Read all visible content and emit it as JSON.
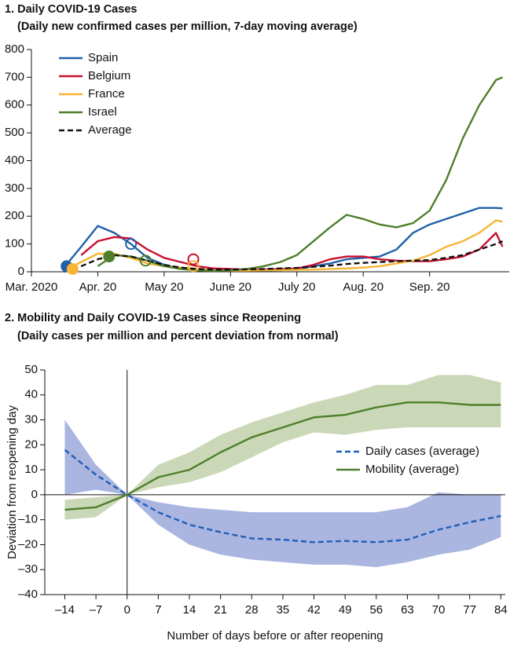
{
  "chart_data": [
    {
      "type": "line",
      "title": "1. Daily COVID-19 Cases",
      "subtitle": "(Daily new confirmed cases per million, 7-day moving average)",
      "x": [
        0.5,
        0.75,
        1,
        1.25,
        1.5,
        1.75,
        2,
        2.25,
        2.5,
        2.75,
        3,
        3.25,
        3.5,
        3.75,
        4,
        4.25,
        4.5,
        4.75,
        5,
        5.25,
        5.5,
        5.75,
        6,
        6.25,
        6.5,
        6.75,
        7,
        7.1
      ],
      "xlim": [
        0,
        7.2
      ],
      "xticks": [
        {
          "value": 0,
          "label": "Mar. 2020"
        },
        {
          "value": 1,
          "label": "Apr. 20"
        },
        {
          "value": 2,
          "label": "May 20"
        },
        {
          "value": 3,
          "label": "June 20"
        },
        {
          "value": 4,
          "label": "July 20"
        },
        {
          "value": 5,
          "label": "Aug. 20"
        },
        {
          "value": 6,
          "label": "Sep. 20"
        }
      ],
      "ylim": [
        0,
        800
      ],
      "yticks": [
        0,
        100,
        200,
        300,
        400,
        500,
        600,
        700,
        800
      ],
      "legend": "upper left",
      "series": [
        {
          "name": "Spain",
          "color": "#1f5fa8",
          "dashed": false,
          "values": [
            18,
            90,
            165,
            140,
            100,
            50,
            25,
            12,
            8,
            6,
            5,
            5,
            5,
            6,
            10,
            20,
            30,
            45,
            50,
            55,
            80,
            140,
            170,
            190,
            210,
            230,
            230,
            228
          ],
          "markers": [
            {
              "x": 0.53,
              "y": 20,
              "filled": true
            },
            {
              "x": 1.5,
              "y": 100,
              "filled": false
            }
          ]
        },
        {
          "name": "Belgium",
          "color": "#c8102e",
          "dashed": false,
          "values": [
            null,
            60,
            110,
            125,
            120,
            80,
            50,
            35,
            20,
            12,
            10,
            8,
            8,
            10,
            12,
            25,
            45,
            55,
            55,
            45,
            40,
            38,
            38,
            45,
            55,
            80,
            140,
            90
          ],
          "markers": [
            {
              "x": 2.44,
              "y": 45,
              "filled": false
            }
          ]
        },
        {
          "name": "France",
          "color": "#f6b534",
          "dashed": false,
          "values": [
            5,
            35,
            65,
            65,
            50,
            30,
            20,
            15,
            10,
            5,
            4,
            4,
            5,
            6,
            7,
            8,
            10,
            12,
            15,
            20,
            30,
            40,
            60,
            90,
            110,
            140,
            185,
            180
          ],
          "markers": [
            {
              "x": 0.62,
              "y": 10,
              "filled": true
            },
            {
              "x": 2.44,
              "y": 20,
              "filled": false
            }
          ]
        },
        {
          "name": "Israel",
          "color": "#4f7f2a",
          "dashed": false,
          "values": [
            null,
            null,
            20,
            60,
            55,
            40,
            20,
            10,
            5,
            3,
            5,
            10,
            20,
            35,
            60,
            110,
            160,
            205,
            190,
            170,
            160,
            175,
            220,
            330,
            480,
            600,
            690,
            700
          ],
          "markers": [
            {
              "x": 1.17,
              "y": 55,
              "filled": true
            },
            {
              "x": 1.72,
              "y": 40,
              "filled": false
            }
          ]
        },
        {
          "name": "Average",
          "color": "#111111",
          "dashed": true,
          "values": [
            0,
            20,
            45,
            60,
            55,
            40,
            25,
            15,
            10,
            8,
            8,
            9,
            10,
            12,
            14,
            18,
            22,
            28,
            32,
            35,
            38,
            40,
            42,
            50,
            60,
            80,
            100,
            110
          ]
        }
      ]
    },
    {
      "type": "line",
      "title": "2. Mobility and Daily COVID-19 Cases since Reopening",
      "subtitle": "(Daily cases per million and percent deviation from normal)",
      "x_label": "Number of days before or after reopening",
      "y_label": "Deviation from reopening day",
      "x": [
        -14,
        -7,
        0,
        7,
        14,
        21,
        28,
        35,
        42,
        49,
        56,
        63,
        70,
        77,
        84
      ],
      "xlim": [
        -18.5,
        85
      ],
      "xticks": [
        {
          "value": -14,
          "label": "–14"
        },
        {
          "value": -7,
          "label": "–7"
        },
        0,
        7,
        14,
        21,
        28,
        35,
        42,
        49,
        56,
        63,
        70,
        77,
        84
      ],
      "ylim": [
        -40,
        50
      ],
      "yticks": [
        50,
        40,
        30,
        20,
        10,
        0,
        {
          "value": -10,
          "label": "–10"
        },
        {
          "value": -20,
          "label": "–20"
        },
        {
          "value": -30,
          "label": "–30"
        },
        {
          "value": -40,
          "label": "–40"
        }
      ],
      "legend": "right",
      "series": [
        {
          "name": "Daily cases (average)",
          "color": "#1f5fb8",
          "band_color": "#aab5e0",
          "dashed": true,
          "values": [
            18,
            8,
            0,
            -7,
            -12,
            -15,
            -17.5,
            -18,
            -19,
            -18.5,
            -19,
            -18,
            -14,
            -11,
            -8.5
          ],
          "upper": [
            30,
            12,
            0,
            -3,
            -5,
            -6,
            -7,
            -7,
            -7,
            -7,
            -7,
            -5,
            1,
            0,
            0
          ],
          "lower": [
            0,
            2,
            0,
            -12,
            -20,
            -24,
            -26,
            -27,
            -28,
            -28,
            -29,
            -27,
            -24,
            -22,
            -17
          ]
        },
        {
          "name": "Mobility (average)",
          "color": "#4f7f2a",
          "band_color": "#cbd8b8",
          "dashed": false,
          "values": [
            -6,
            -5,
            0,
            7,
            10,
            17,
            23,
            27,
            31,
            32,
            35,
            37,
            37,
            36,
            36
          ],
          "upper": [
            -2,
            -1,
            0,
            12,
            17,
            24,
            29,
            33,
            37,
            40,
            44,
            44,
            48,
            48,
            45
          ],
          "lower": [
            -10,
            -9,
            0,
            3,
            5,
            9,
            15,
            21,
            25,
            24,
            26,
            27,
            27,
            27,
            27
          ]
        }
      ]
    }
  ]
}
